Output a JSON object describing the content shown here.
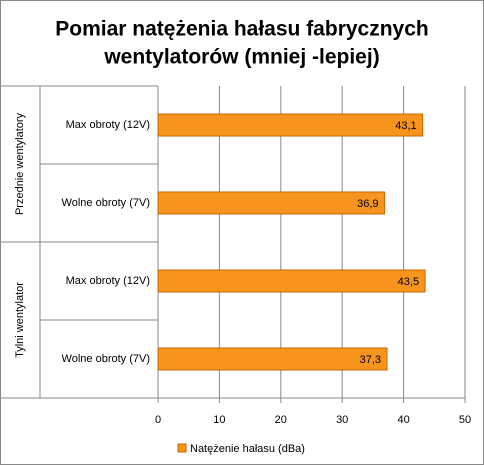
{
  "chart_data": {
    "type": "hbar",
    "title": [
      "Pomiar natężenia hałasu fabrycznych",
      "wentylatorów (mniej -lepiej)"
    ],
    "groups": [
      "Przednie wentylatory",
      "Tylni wentylator"
    ],
    "categories": [
      "Max obroty  (12V)",
      "Wolne obroty (7V)",
      "Max obroty (12V)",
      "Wolne obroty (7V)"
    ],
    "series": [
      {
        "name": "Natężenie hałasu (dBa)",
        "color": "#f7941d",
        "values": [
          43.1,
          36.9,
          43.5,
          37.3
        ],
        "value_labels": [
          "43,1",
          "36,9",
          "43,5",
          "37,3"
        ]
      }
    ],
    "xlim": [
      0,
      50
    ],
    "xticks": [
      0,
      10,
      20,
      30,
      40,
      50
    ],
    "grid": true,
    "legend": "bottom"
  }
}
